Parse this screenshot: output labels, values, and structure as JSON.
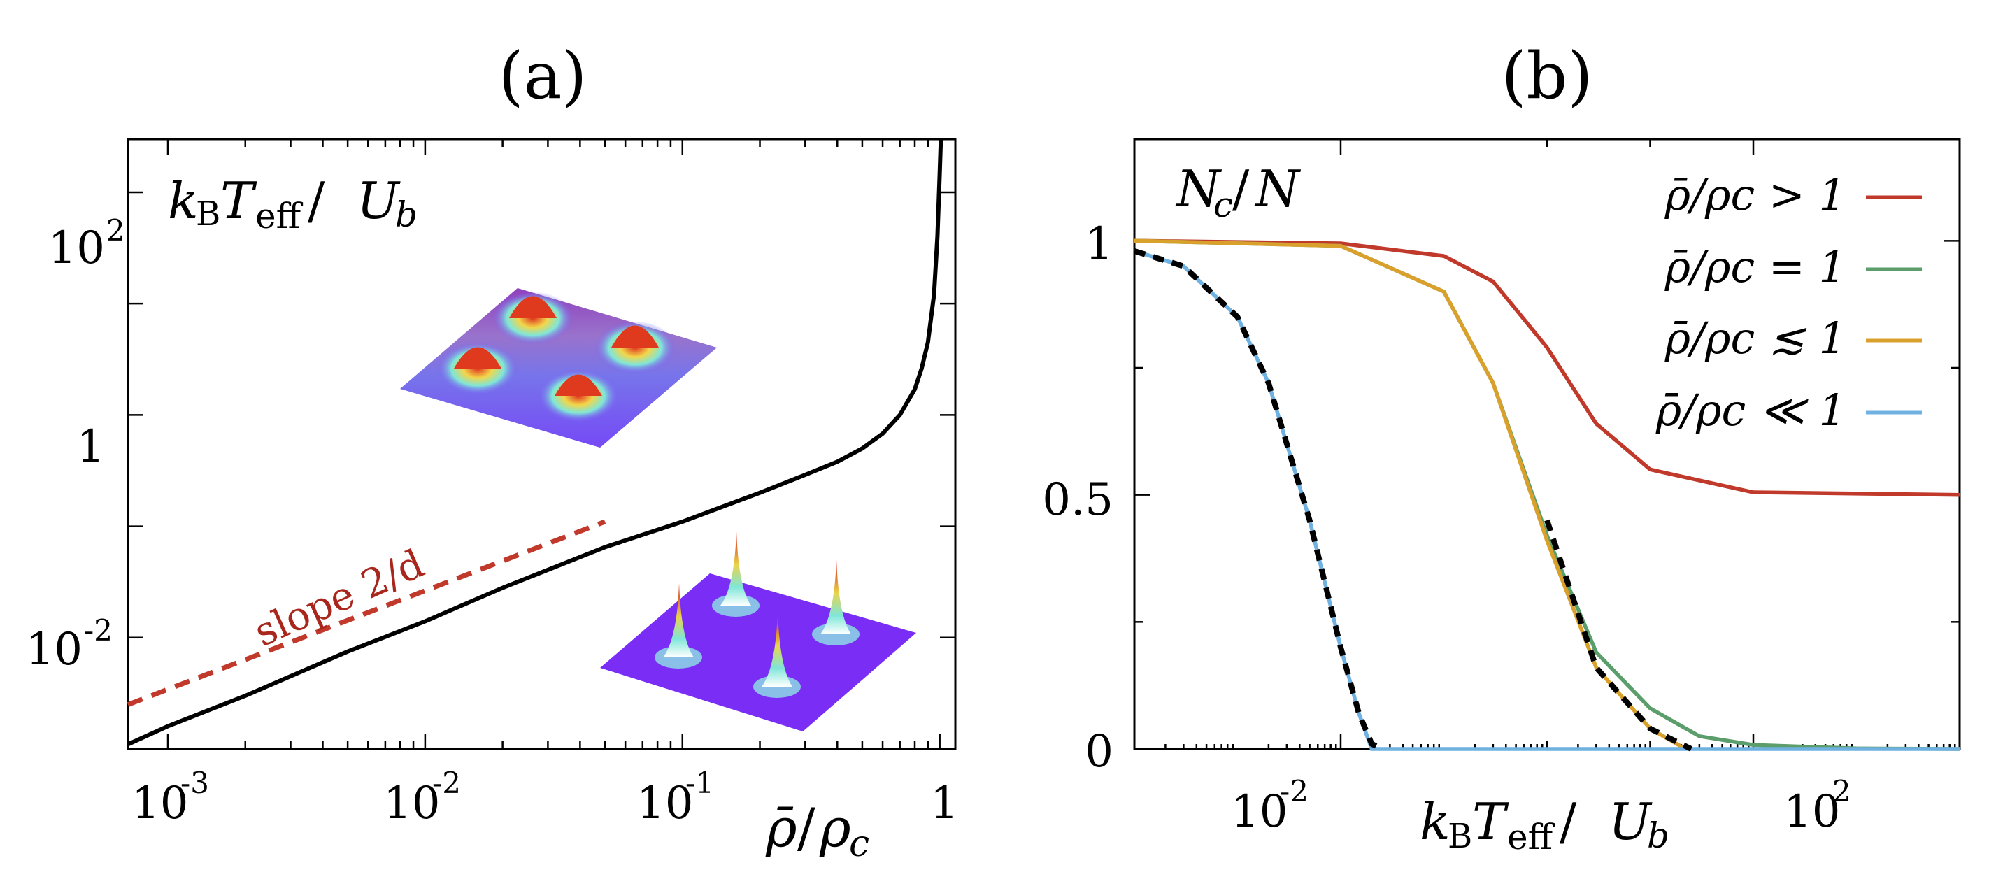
{
  "panels": {
    "a": {
      "title": "(a)"
    },
    "b": {
      "title": "(b)"
    }
  },
  "chart_data": [
    {
      "type": "line",
      "title": "(a)",
      "xlabel": "ρ̄/ρc",
      "ylabel": "kBTeff / Ub",
      "xscale": "log",
      "yscale": "log",
      "xlim": [
        0.0007,
        1.15
      ],
      "ylim": [
        0.001,
        300
      ],
      "x_ticks": [
        "10-3",
        "10-2",
        "10-1",
        "1"
      ],
      "y_ticks": [
        "10-2",
        "1",
        "102"
      ],
      "annotations": [
        "slope 2/d"
      ],
      "colors": {
        "curve": "#000000",
        "slope": "#c0392b"
      },
      "series": [
        {
          "x": [
            0.0007,
            0.001,
            0.002,
            0.005,
            0.01,
            0.02,
            0.05,
            0.1,
            0.2,
            0.3,
            0.4,
            0.5,
            0.6,
            0.7,
            0.8,
            0.85,
            0.9,
            0.95,
            0.98,
            1.0,
            1.01
          ],
          "y": [
            0.0011,
            0.0016,
            0.003,
            0.0075,
            0.014,
            0.028,
            0.065,
            0.11,
            0.2,
            0.29,
            0.38,
            0.5,
            0.68,
            1.0,
            1.7,
            2.6,
            4.5,
            12,
            40,
            150,
            300
          ]
        },
        {
          "x": [
            0.0007,
            0.05
          ],
          "y": [
            0.0025,
            0.11
          ]
        }
      ]
    },
    {
      "type": "line",
      "title": "(b)",
      "xlabel": "kBTeff / Ub",
      "ylabel": "Nc/N",
      "xscale": "log",
      "xlim": [
        0.0001,
        10000
      ],
      "ylim": [
        0,
        1.2
      ],
      "x_ticks": [
        "10-2",
        "102"
      ],
      "y_ticks": [
        "0",
        "0.5",
        "1"
      ],
      "legend_position": "top-right",
      "series": [
        {
          "name": "ρ̄/ρc > 1",
          "color": "#c0392b",
          "x": [
            0.0001,
            0.01,
            0.1,
            0.3,
            1,
            3,
            10,
            100,
            10000
          ],
          "y": [
            1.0,
            0.995,
            0.97,
            0.92,
            0.79,
            0.64,
            0.55,
            0.505,
            0.5
          ]
        },
        {
          "name": "ρ̄/ρc = 1",
          "color": "#5b9e6c",
          "x": [
            0.0001,
            0.01,
            0.1,
            0.3,
            1,
            3,
            10,
            30,
            100,
            1000,
            10000
          ],
          "y": [
            1.0,
            0.99,
            0.9,
            0.72,
            0.42,
            0.19,
            0.08,
            0.025,
            0.008,
            0.001,
            0.0
          ]
        },
        {
          "name": "ρ̄/ρc ≲ 1",
          "color": "#d9a12b",
          "x": [
            0.0001,
            0.01,
            0.1,
            0.3,
            1,
            3,
            10,
            20,
            25
          ],
          "y": [
            1.0,
            0.99,
            0.9,
            0.72,
            0.41,
            0.16,
            0.04,
            0.005,
            0.0
          ]
        },
        {
          "name": "ρ̄/ρc ≪ 1",
          "color": "#6fb1e0",
          "x": [
            0.0001,
            0.0003,
            0.001,
            0.002,
            0.005,
            0.01,
            0.015,
            0.02,
            0.025,
            10000
          ],
          "y": [
            0.98,
            0.95,
            0.85,
            0.72,
            0.45,
            0.2,
            0.07,
            0.0,
            0.0,
            0.0
          ]
        },
        {
          "dashed": true,
          "color": "#000000",
          "x": [
            0.0001,
            0.0003,
            0.001,
            0.002,
            0.005,
            0.01,
            0.015,
            0.02,
            0.025
          ],
          "y": [
            0.98,
            0.95,
            0.85,
            0.72,
            0.45,
            0.2,
            0.07,
            0.01,
            0.0
          ]
        },
        {
          "dashed": true,
          "color": "#000000",
          "x": [
            1.0,
            3,
            10,
            25
          ],
          "y": [
            0.45,
            0.16,
            0.04,
            0.0
          ]
        }
      ]
    }
  ]
}
